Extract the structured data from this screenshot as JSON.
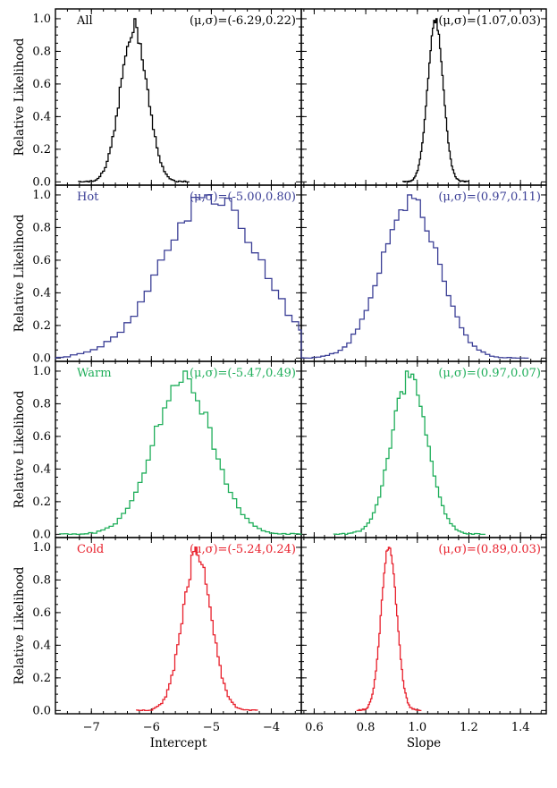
{
  "chart_data": {
    "type": "step-histogram-grid",
    "ylabel": "Relative Likelihood",
    "columns": [
      {
        "xlabel": "Intercept",
        "xlim": [
          -7.6,
          -3.5
        ],
        "xticks": [
          -7,
          -6,
          -5,
          -4
        ],
        "xtick_labels": [
          "−7",
          "−6",
          "−5",
          "−4"
        ]
      },
      {
        "xlabel": "Slope",
        "xlim": [
          0.55,
          1.5
        ],
        "xticks": [
          0.6,
          0.8,
          1.0,
          1.2,
          1.4
        ],
        "xtick_labels": [
          "0.6",
          "0.8",
          "1.0",
          "1.2",
          "1.4"
        ]
      }
    ],
    "ylim": [
      -0.02,
      1.06
    ],
    "yticks": [
      0.0,
      0.2,
      0.4,
      0.6,
      0.8,
      1.0
    ],
    "ytick_labels": [
      "0.0",
      "0.2",
      "0.4",
      "0.6",
      "0.8",
      "1.0"
    ],
    "rows": [
      {
        "name": "All",
        "color": "#000000",
        "intercept": {
          "mu": -6.29,
          "sigma": 0.22,
          "label": "(μ,σ)=(-6.29,0.22)"
        },
        "slope": {
          "mu": 1.07,
          "sigma": 0.03,
          "label": "(μ,σ)=(1.07,0.03)"
        }
      },
      {
        "name": "Hot",
        "color": "#3b3f96",
        "intercept": {
          "mu": -5.0,
          "sigma": 0.8,
          "label": "(μ,σ)=(-5.00,0.80)"
        },
        "slope": {
          "mu": 0.97,
          "sigma": 0.11,
          "label": "(μ,σ)=(0.97,0.11)"
        }
      },
      {
        "name": "Warm",
        "color": "#1fae5a",
        "intercept": {
          "mu": -5.47,
          "sigma": 0.49,
          "label": "(μ,σ)=(-5.47,0.49)"
        },
        "slope": {
          "mu": 0.97,
          "sigma": 0.07,
          "label": "(μ,σ)=(0.97,0.07)"
        }
      },
      {
        "name": "Cold",
        "color": "#e8202c",
        "intercept": {
          "mu": -5.24,
          "sigma": 0.24,
          "label": "(μ,σ)=(-5.24,0.24)"
        },
        "slope": {
          "mu": 0.89,
          "sigma": 0.03,
          "label": "(μ,σ)=(0.89,0.03)"
        }
      }
    ]
  }
}
